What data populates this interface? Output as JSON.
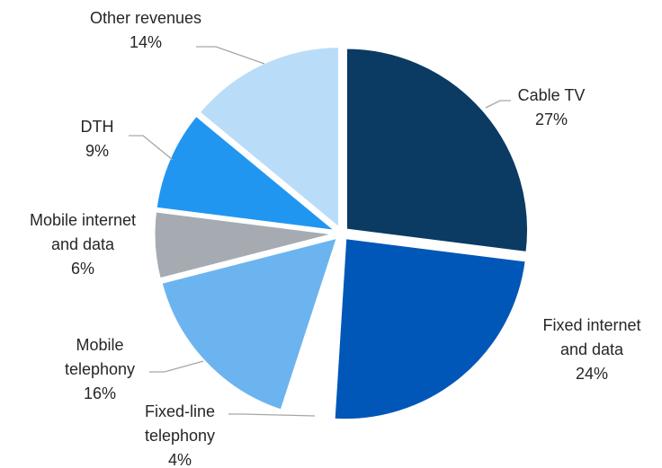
{
  "chart_data": {
    "type": "pie",
    "slices": [
      {
        "label_lines": [
          "Cable TV"
        ],
        "pct_label": "27%",
        "value": 27,
        "color": "#0b3a63"
      },
      {
        "label_lines": [
          "Fixed internet",
          "and data"
        ],
        "pct_label": "24%",
        "value": 24,
        "color": "#0057b8"
      },
      {
        "label_lines": [
          "Fixed-line",
          "telephony"
        ],
        "pct_label": "4%",
        "value": 4,
        "color": "#ffffff"
      },
      {
        "label_lines": [
          "Mobile",
          "telephony"
        ],
        "pct_label": "16%",
        "value": 16,
        "color": "#6cb4f0"
      },
      {
        "label_lines": [
          "Mobile internet",
          "and data"
        ],
        "pct_label": "6%",
        "value": 6,
        "color": "#a6abb2"
      },
      {
        "label_lines": [
          "DTH"
        ],
        "pct_label": "9%",
        "value": 9,
        "color": "#2196f0"
      },
      {
        "label_lines": [
          "Other revenues"
        ],
        "pct_label": "14%",
        "value": 14,
        "color": "#b9dcf8"
      }
    ],
    "start": "12 o'clock",
    "direction": "clockwise",
    "legend": "none"
  }
}
